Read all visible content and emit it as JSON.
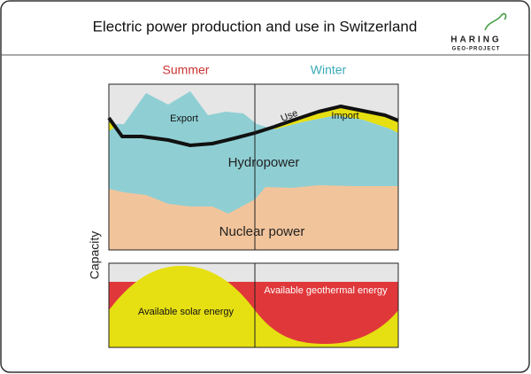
{
  "header": {
    "title": "Electric power production and use in Switzerland",
    "logo": {
      "name": "HARING",
      "subtitle": "GEO-PROJECT"
    }
  },
  "seasons": {
    "summer": "Summer",
    "winter": "Winter"
  },
  "production_chart": {
    "export": "Export",
    "use": "Use",
    "import": "Import",
    "hydropower": "Hydropower",
    "nuclear": "Nuclear power"
  },
  "potential_chart": {
    "solar": "Available solar energy",
    "geothermal": "Available geothermal energy"
  },
  "y_axis_label": "Capacity"
}
